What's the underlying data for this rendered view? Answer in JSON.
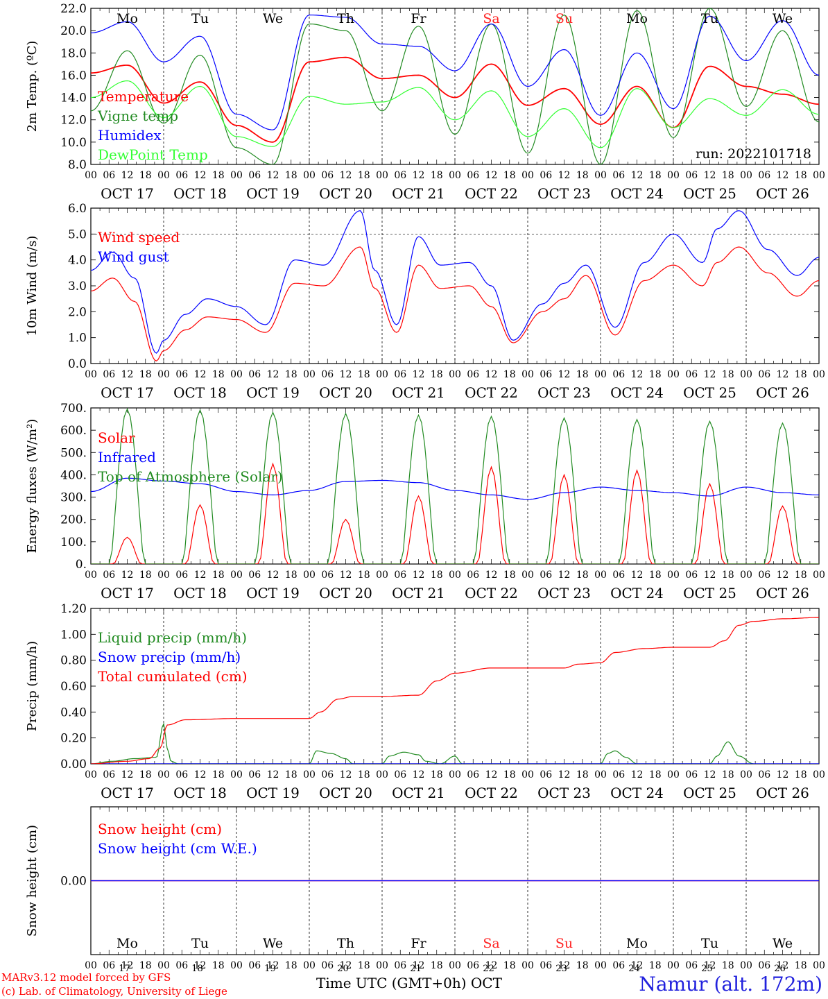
{
  "run_label": "run: 2022101718",
  "station": "Namur (alt. 172m)",
  "credits": {
    "model": "MARv3.12 model forced by GFS",
    "lab": "(c) Lab. of Climatology, University of Liege"
  },
  "time_axis_label": "Time UTC (GMT+0h) OCT",
  "days": [
    {
      "abbr": "Mo",
      "date": "OCT 17",
      "num": "17",
      "weekend": false
    },
    {
      "abbr": "Tu",
      "date": "OCT 18",
      "num": "18",
      "weekend": false
    },
    {
      "abbr": "We",
      "date": "OCT 19",
      "num": "19",
      "weekend": false
    },
    {
      "abbr": "Th",
      "date": "OCT 20",
      "num": "20",
      "weekend": false
    },
    {
      "abbr": "Fr",
      "date": "OCT 21",
      "num": "21",
      "weekend": false
    },
    {
      "abbr": "Sa",
      "date": "OCT 22",
      "num": "22",
      "weekend": true
    },
    {
      "abbr": "Su",
      "date": "OCT 23",
      "num": "23",
      "weekend": true
    },
    {
      "abbr": "Mo",
      "date": "OCT 24",
      "num": "24",
      "weekend": false
    },
    {
      "abbr": "Tu",
      "date": "OCT 25",
      "num": "25",
      "weekend": false
    },
    {
      "abbr": "We",
      "date": "OCT 26",
      "num": "26",
      "weekend": false
    }
  ],
  "hour_ticks": [
    "00",
    "06",
    "12",
    "18"
  ],
  "final_hour_tick": "00",
  "colors": {
    "red": "#ff0000",
    "green": "#008000",
    "blue": "#0000ff",
    "lightgreen": "#33ff33",
    "darkgreen": "#2a7a2a",
    "purple": "#aa00aa",
    "weekend": "#ff2222"
  },
  "chart_data": [
    {
      "id": "temp",
      "type": "line",
      "ylabel": "2m Temp. (ºC)",
      "ylim": [
        8,
        22
      ],
      "y_ticks": [
        "8.0",
        "10.0",
        "12.0",
        "14.0",
        "16.0",
        "18.0",
        "20.0",
        "22.0"
      ],
      "x_unit": "day index from OCT 17 00 UTC",
      "show_day_names": true,
      "legend_position": "left",
      "series": [
        {
          "name": "Temperature",
          "color": "#ff0000",
          "x": [
            0,
            0.5,
            1,
            1.5,
            2,
            2.5,
            3,
            3.5,
            4,
            4.5,
            5,
            5.5,
            6,
            6.5,
            7,
            7.5,
            8,
            8.5,
            9,
            9.5,
            10
          ],
          "values": [
            16.2,
            16.9,
            13.5,
            15.4,
            11.5,
            10.0,
            17.2,
            17.6,
            15.7,
            16.0,
            14.0,
            17.0,
            13.3,
            14.8,
            11.6,
            15.0,
            11.3,
            16.8,
            15.0,
            14.3,
            13.4
          ]
        },
        {
          "name": "Vigne temp",
          "color": "#228b22",
          "x": [
            0,
            0.5,
            1,
            1.5,
            2,
            2.5,
            3,
            3.5,
            4,
            4.5,
            5,
            5.5,
            6,
            6.5,
            7,
            7.5,
            8,
            8.5,
            9,
            9.5,
            10
          ],
          "values": [
            12.8,
            18.2,
            11.7,
            17.8,
            9.5,
            8.0,
            20.6,
            20.0,
            12.8,
            20.4,
            10.7,
            20.6,
            9.0,
            21.4,
            8.0,
            21.8,
            10.4,
            22.0,
            13.2,
            20.0,
            11.8
          ]
        },
        {
          "name": "Humidex",
          "color": "#0000ff",
          "x": [
            0,
            0.5,
            1,
            1.5,
            2,
            2.5,
            3,
            3.5,
            4,
            4.5,
            5,
            5.5,
            6,
            6.5,
            7,
            7.5,
            8,
            8.5,
            9,
            9.5,
            10
          ],
          "values": [
            19.8,
            20.8,
            17.2,
            19.5,
            12.5,
            11.1,
            21.4,
            21.2,
            18.8,
            18.6,
            16.4,
            20.6,
            15.0,
            18.3,
            12.4,
            18.0,
            13.0,
            21.3,
            17.3,
            20.9,
            16.0
          ]
        },
        {
          "name": "DewPoint Temp",
          "color": "#33ff33",
          "x": [
            0,
            0.5,
            1,
            1.5,
            2,
            2.5,
            3,
            3.5,
            4,
            4.5,
            5,
            5.5,
            6,
            6.5,
            7,
            7.5,
            8,
            8.5,
            9,
            9.5,
            10
          ],
          "values": [
            14.0,
            15.5,
            12.2,
            15.0,
            10.5,
            9.6,
            14.1,
            13.4,
            13.6,
            14.9,
            12.0,
            14.6,
            10.5,
            13.0,
            9.5,
            14.8,
            11.3,
            13.9,
            12.4,
            14.7,
            12.5
          ]
        }
      ]
    },
    {
      "id": "wind",
      "type": "line",
      "ylabel": "10m Wind (m/s)",
      "ylim": [
        0,
        6
      ],
      "y_ticks": [
        "0.0",
        "1.0",
        "2.0",
        "3.0",
        "4.0",
        "5.0",
        "6.0"
      ],
      "ref_line": 5.0,
      "show_day_names": false,
      "legend_position": "left",
      "series": [
        {
          "name": "Wind speed",
          "color": "#ff0000",
          "x": [
            0,
            0.3,
            0.6,
            0.9,
            1,
            1.3,
            1.6,
            2,
            2.4,
            2.8,
            3.2,
            3.7,
            3.9,
            4.2,
            4.5,
            4.8,
            5.2,
            5.5,
            5.8,
            6.2,
            6.5,
            6.8,
            7.2,
            7.6,
            8,
            8.4,
            8.6,
            8.9,
            9.3,
            9.7,
            10
          ],
          "values": [
            2.8,
            3.3,
            2.4,
            0.1,
            0.5,
            1.3,
            1.8,
            1.7,
            1.2,
            3.1,
            3.0,
            4.5,
            2.9,
            1.2,
            3.8,
            2.9,
            3.0,
            2.2,
            0.8,
            2.0,
            2.5,
            3.4,
            1.1,
            3.2,
            3.8,
            3.0,
            3.9,
            4.5,
            3.5,
            2.6,
            3.2
          ]
        },
        {
          "name": "Wind gust",
          "color": "#0000ff",
          "x": [
            0,
            0.3,
            0.6,
            0.9,
            1,
            1.3,
            1.6,
            2,
            2.4,
            2.8,
            3.2,
            3.7,
            3.9,
            4.2,
            4.5,
            4.8,
            5.2,
            5.5,
            5.8,
            6.2,
            6.5,
            6.8,
            7.2,
            7.6,
            8,
            8.4,
            8.6,
            8.9,
            9.3,
            9.7,
            10
          ],
          "values": [
            3.6,
            4.3,
            3.3,
            0.4,
            0.9,
            1.9,
            2.5,
            2.2,
            1.5,
            4.0,
            3.8,
            5.9,
            3.6,
            1.5,
            4.9,
            3.8,
            3.9,
            3.0,
            0.9,
            2.3,
            3.1,
            3.8,
            1.4,
            3.9,
            5.0,
            3.9,
            5.2,
            5.9,
            4.4,
            3.4,
            4.1
          ]
        }
      ]
    },
    {
      "id": "energy",
      "type": "line",
      "ylabel": "Energy fluxes (W/m²)",
      "ylim": [
        0,
        700
      ],
      "y_ticks": [
        "0.",
        "100.",
        "200.",
        "300.",
        "400.",
        "500.",
        "600.",
        "700."
      ],
      "show_day_names": false,
      "legend_position": "left",
      "series": [
        {
          "name": "Solar",
          "color": "#ff0000",
          "daily_peak_values": [
            120,
            265,
            450,
            200,
            305,
            435,
            400,
            420,
            360,
            260
          ]
        },
        {
          "name": "Infrared",
          "color": "#0000ff",
          "x": [
            0,
            0.5,
            1,
            1.5,
            2,
            2.5,
            3,
            3.5,
            4,
            4.5,
            5,
            5.5,
            6,
            6.5,
            7,
            7.5,
            8,
            8.5,
            9,
            9.5,
            10
          ],
          "values": [
            325,
            385,
            372,
            360,
            325,
            310,
            330,
            370,
            375,
            365,
            330,
            310,
            290,
            320,
            345,
            330,
            320,
            305,
            345,
            320,
            310
          ]
        },
        {
          "name": "Top of Atmosphere (Solar)",
          "color": "#228b22",
          "daily_peak_values": [
            695,
            690,
            680,
            675,
            668,
            662,
            655,
            648,
            640,
            632
          ]
        }
      ]
    },
    {
      "id": "precip",
      "type": "line",
      "ylabel": "Precip (mm/h)",
      "ylim": [
        0,
        1.2
      ],
      "y_ticks": [
        "0.00",
        "0.20",
        "0.40",
        "0.60",
        "0.80",
        "1.00",
        "1.20"
      ],
      "show_day_names": false,
      "legend_position": "left",
      "series": [
        {
          "name": "Liquid precip (mm/h)",
          "color": "#228b22",
          "x": [
            0,
            0.3,
            0.6,
            0.9,
            1.0,
            1.05,
            1.1,
            1.2,
            1.4,
            3.0,
            3.1,
            3.3,
            3.5,
            3.6,
            4.0,
            4.1,
            4.3,
            4.5,
            4.6,
            4.8,
            5.0,
            5.1,
            7.0,
            7.1,
            7.2,
            7.35,
            7.5,
            8.5,
            8.6,
            8.75,
            8.9,
            9.1
          ],
          "values": [
            0,
            0.02,
            0.04,
            0.05,
            0.31,
            0.12,
            0.02,
            0.0,
            0.0,
            0,
            0.1,
            0.08,
            0.04,
            0,
            0,
            0.06,
            0.09,
            0.07,
            0.02,
            0,
            0.06,
            0,
            0,
            0.08,
            0.1,
            0.05,
            0,
            0,
            0.06,
            0.17,
            0.06,
            0
          ]
        },
        {
          "name": "Snow precip (mm/h)",
          "color": "#0000ff",
          "x": [
            0,
            10
          ],
          "values": [
            0,
            0
          ]
        },
        {
          "name": "Total cumulated (cm)",
          "color": "#ff0000",
          "x": [
            0,
            0.5,
            0.8,
            0.95,
            1.05,
            1.3,
            2.0,
            3.0,
            3.15,
            3.4,
            3.6,
            4.0,
            4.5,
            4.75,
            5.0,
            5.5,
            6.5,
            6.7,
            7.0,
            7.2,
            7.6,
            8.0,
            8.5,
            8.7,
            8.9,
            9.1,
            9.5,
            10
          ],
          "values": [
            0,
            0.02,
            0.04,
            0.12,
            0.3,
            0.34,
            0.35,
            0.35,
            0.4,
            0.5,
            0.52,
            0.52,
            0.53,
            0.64,
            0.7,
            0.74,
            0.74,
            0.77,
            0.78,
            0.86,
            0.89,
            0.9,
            0.9,
            0.95,
            1.07,
            1.1,
            1.12,
            1.13
          ]
        }
      ]
    },
    {
      "id": "snow",
      "type": "line",
      "ylabel": "Snow height (cm)",
      "ylim": [
        -1,
        1
      ],
      "y_ticks": [
        "0.00"
      ],
      "show_day_names": true,
      "legend_position": "left",
      "series": [
        {
          "name": "Snow height (cm)",
          "color": "#ff0000",
          "x": [
            0,
            10
          ],
          "values": [
            0,
            0
          ]
        },
        {
          "name": "Snow height (cm W.E.)",
          "color": "#0000ff",
          "x": [
            0,
            10
          ],
          "values": [
            0,
            0
          ]
        }
      ]
    }
  ]
}
